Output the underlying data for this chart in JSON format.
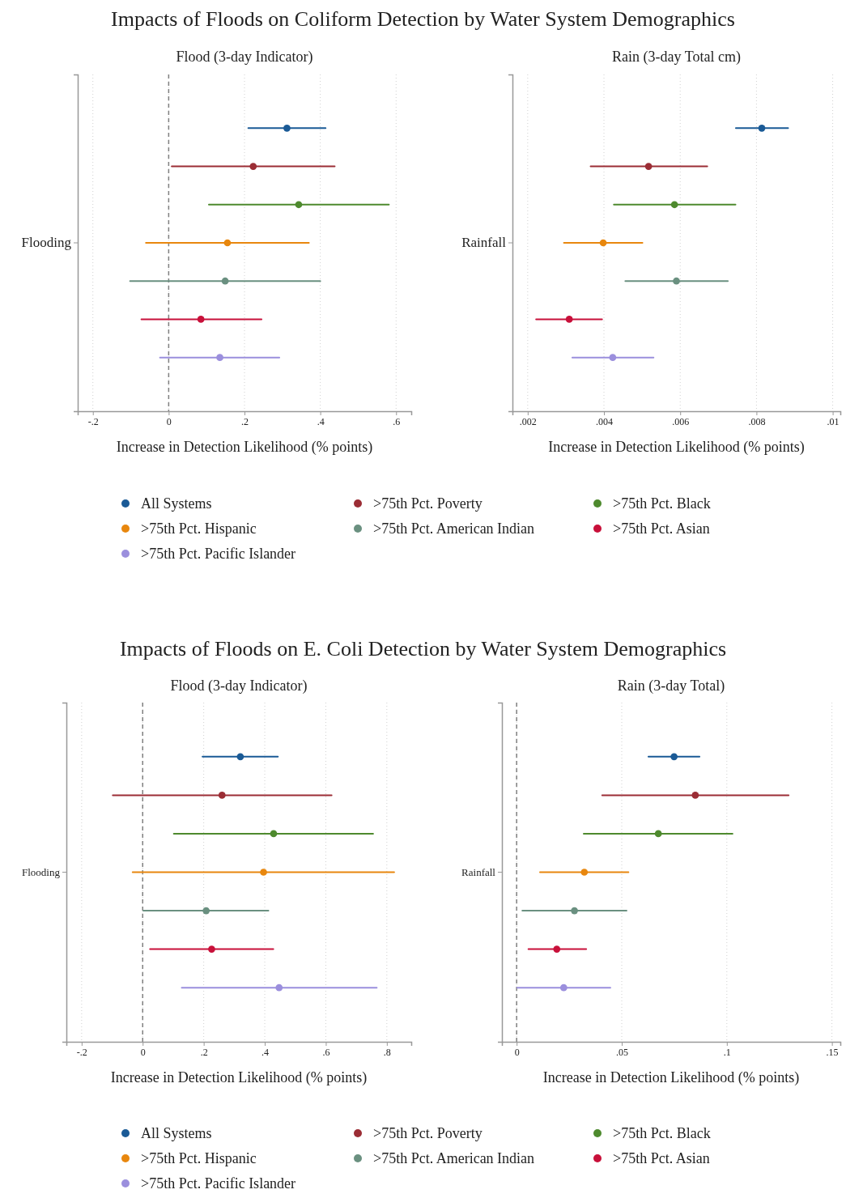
{
  "chart_data": [
    {
      "type": "scatter",
      "orientation": "horizontal",
      "title": "Impacts of Floods on Coliform Detection by Water System Demographics",
      "subtitle": "Flood (3-day Indicator)",
      "xlabel": "Increase in Detection Likelihood (% points)",
      "categories": [
        "Flooding"
      ],
      "xlim": [
        -0.24,
        0.64
      ],
      "xticks": [
        {
          "value": -0.2,
          "label": "-.2"
        },
        {
          "value": 0,
          "label": "0"
        },
        {
          "value": 0.2,
          "label": ".2"
        },
        {
          "value": 0.4,
          "label": ".4"
        },
        {
          "value": 0.6,
          "label": ".6"
        }
      ],
      "grid": "x",
      "marker": "circle",
      "legend": "bottom",
      "ref_lines": [
        {
          "axis": "x",
          "value": 0,
          "line_style": "dashed",
          "color": "#808080"
        }
      ],
      "series": [
        {
          "name": "All Systems",
          "color": "#1a5a96",
          "values": [
            0.312
          ],
          "errors": [
            [
              0.21,
              0.414
            ]
          ]
        },
        {
          "name": ">75th Pct. Poverty",
          "color": "#9b2d35",
          "values": [
            0.223
          ],
          "errors": [
            [
              0.008,
              0.438
            ]
          ]
        },
        {
          "name": ">75th Pct. Black",
          "color": "#4e8a2e",
          "values": [
            0.343
          ],
          "errors": [
            [
              0.106,
              0.581
            ]
          ]
        },
        {
          "name": ">75th Pct. Hispanic",
          "color": "#e8870e",
          "values": [
            0.155
          ],
          "errors": [
            [
              -0.06,
              0.37
            ]
          ]
        },
        {
          "name": ">75th Pct. American Indian",
          "color": "#6a9080",
          "values": [
            0.149
          ],
          "errors": [
            [
              -0.102,
              0.4
            ]
          ]
        },
        {
          "name": ">75th Pct. Asian",
          "color": "#c8103a",
          "values": [
            0.085
          ],
          "errors": [
            [
              -0.072,
              0.245
            ]
          ]
        },
        {
          "name": ">75th Pct. Pacific Islander",
          "color": "#9b8fdd",
          "values": [
            0.135
          ],
          "errors": [
            [
              -0.023,
              0.292
            ]
          ]
        }
      ]
    },
    {
      "type": "scatter",
      "orientation": "horizontal",
      "subtitle": "Rain (3-day Total cm)",
      "xlabel": "Increase in Detection Likelihood (% points)",
      "categories": [
        "Rainfall"
      ],
      "xlim": [
        0.0016,
        0.0102
      ],
      "xticks": [
        {
          "value": 0.002,
          "label": ".002"
        },
        {
          "value": 0.004,
          "label": ".004"
        },
        {
          "value": 0.006,
          "label": ".006"
        },
        {
          "value": 0.008,
          "label": ".008"
        },
        {
          "value": 0.01,
          "label": ".01"
        }
      ],
      "grid": "x",
      "marker": "circle",
      "series": [
        {
          "color": "#1a5a96",
          "values": [
            0.00814
          ],
          "errors": [
            [
              0.00746,
              0.00883
            ]
          ]
        },
        {
          "color": "#9b2d35",
          "values": [
            0.00517
          ],
          "errors": [
            [
              0.00365,
              0.00671
            ]
          ]
        },
        {
          "color": "#4e8a2e",
          "values": [
            0.00585
          ],
          "errors": [
            [
              0.00426,
              0.00745
            ]
          ]
        },
        {
          "color": "#e8870e",
          "values": [
            0.00398
          ],
          "errors": [
            [
              0.00295,
              0.00501
            ]
          ]
        },
        {
          "color": "#6a9080",
          "values": [
            0.0059
          ],
          "errors": [
            [
              0.00456,
              0.00725
            ]
          ]
        },
        {
          "color": "#c8103a",
          "values": [
            0.00309
          ],
          "errors": [
            [
              0.00222,
              0.00395
            ]
          ]
        },
        {
          "color": "#9b8fdd",
          "values": [
            0.00423
          ],
          "errors": [
            [
              0.00317,
              0.0053
            ]
          ]
        }
      ]
    },
    {
      "type": "scatter",
      "orientation": "horizontal",
      "title": "Impacts of Floods on E. Coli Detection by Water System Demographics",
      "subtitle": "Flood (3-day Indicator)",
      "xlabel": "Increase in Detection Likelihood (% points)",
      "categories": [
        "Flooding"
      ],
      "xlim": [
        -0.25,
        0.88
      ],
      "xticks": [
        {
          "value": -0.2,
          "label": "-.2"
        },
        {
          "value": 0,
          "label": "0"
        },
        {
          "value": 0.2,
          "label": ".2"
        },
        {
          "value": 0.4,
          "label": ".4"
        },
        {
          "value": 0.6,
          "label": ".6"
        },
        {
          "value": 0.8,
          "label": ".8"
        }
      ],
      "grid": "x",
      "marker": "circle",
      "legend": "bottom",
      "ref_lines": [
        {
          "axis": "x",
          "value": 0,
          "line_style": "dashed",
          "color": "#808080"
        }
      ],
      "series": [
        {
          "name": "All Systems",
          "color": "#1a5a96",
          "values": [
            0.32
          ],
          "errors": [
            [
              0.196,
              0.443
            ]
          ]
        },
        {
          "name": ">75th Pct. Poverty",
          "color": "#9b2d35",
          "values": [
            0.26
          ],
          "errors": [
            [
              -0.098,
              0.619
            ]
          ]
        },
        {
          "name": ">75th Pct. Black",
          "color": "#4e8a2e",
          "values": [
            0.429
          ],
          "errors": [
            [
              0.102,
              0.755
            ]
          ]
        },
        {
          "name": ">75th Pct. Hispanic",
          "color": "#e8870e",
          "values": [
            0.396
          ],
          "errors": [
            [
              -0.033,
              0.824
            ]
          ]
        },
        {
          "name": ">75th Pct. American Indian",
          "color": "#6a9080",
          "values": [
            0.208
          ],
          "errors": [
            [
              0.002,
              0.412
            ]
          ]
        },
        {
          "name": ">75th Pct. Asian",
          "color": "#c8103a",
          "values": [
            0.226
          ],
          "errors": [
            [
              0.024,
              0.428
            ]
          ]
        },
        {
          "name": ">75th Pct. Pacific Islander",
          "color": "#9b8fdd",
          "values": [
            0.447
          ],
          "errors": [
            [
              0.128,
              0.767
            ]
          ]
        }
      ]
    },
    {
      "type": "scatter",
      "orientation": "horizontal",
      "subtitle": "Rain (3-day Total)",
      "xlabel": "Increase in Detection Likelihood (% points)",
      "categories": [
        "Rainfall"
      ],
      "xlim": [
        -0.007,
        0.154
      ],
      "xticks": [
        {
          "value": 0,
          "label": "0"
        },
        {
          "value": 0.05,
          "label": ".05"
        },
        {
          "value": 0.1,
          "label": ".1"
        },
        {
          "value": 0.15,
          "label": ".15"
        }
      ],
      "grid": "x",
      "marker": "circle",
      "ref_lines": [
        {
          "axis": "x",
          "value": 0,
          "line_style": "dashed",
          "color": "#808080"
        }
      ],
      "series": [
        {
          "color": "#1a5a96",
          "values": [
            0.0749
          ],
          "errors": [
            [
              0.0627,
              0.087
            ]
          ]
        },
        {
          "color": "#9b2d35",
          "values": [
            0.085
          ],
          "errors": [
            [
              0.0407,
              0.1294
            ]
          ]
        },
        {
          "color": "#4e8a2e",
          "values": [
            0.0674
          ],
          "errors": [
            [
              0.0319,
              0.1027
            ]
          ]
        },
        {
          "color": "#e8870e",
          "values": [
            0.0322
          ],
          "errors": [
            [
              0.0111,
              0.0532
            ]
          ]
        },
        {
          "color": "#6a9080",
          "values": [
            0.0275
          ],
          "errors": [
            [
              0.0027,
              0.0523
            ]
          ]
        },
        {
          "color": "#c8103a",
          "values": [
            0.0191
          ],
          "errors": [
            [
              0.0056,
              0.0331
            ]
          ]
        },
        {
          "color": "#9b8fdd",
          "values": [
            0.0224
          ],
          "errors": [
            [
              0.0003,
              0.0446
            ]
          ]
        }
      ]
    }
  ]
}
